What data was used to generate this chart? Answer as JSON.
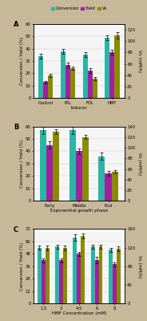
{
  "panel_A": {
    "categories": [
      "Control",
      "FAL",
      "FOL",
      "HMF"
    ],
    "xlabel": "Inducer",
    "conversion": [
      34,
      38,
      35,
      49
    ],
    "yield_": [
      13,
      27,
      22,
      37
    ],
    "vs": [
      40,
      52,
      34,
      110
    ],
    "conversion_err": [
      2,
      2,
      2,
      2
    ],
    "yield_err": [
      1,
      2,
      2,
      2
    ],
    "vs_err": [
      3,
      3,
      3,
      5
    ],
    "ylim_left": [
      0,
      60
    ],
    "ylim_right": [
      0,
      130
    ],
    "yticks_left": [
      0,
      10,
      20,
      30,
      40,
      50,
      60
    ],
    "yticks_right": [
      0,
      20,
      40,
      60,
      80,
      100,
      120
    ]
  },
  "panel_B": {
    "categories": [
      "Early",
      "Middle",
      "End"
    ],
    "xlabel": "Exponential growth phase",
    "conversion": [
      57,
      57,
      36
    ],
    "yield_": [
      45,
      40,
      22
    ],
    "vs": [
      130,
      120,
      55
    ],
    "conversion_err": [
      3,
      3,
      3
    ],
    "yield_err": [
      3,
      2,
      2
    ],
    "vs_err": [
      5,
      4,
      3
    ],
    "ylim_left": [
      0,
      60
    ],
    "ylim_right": [
      0,
      140
    ],
    "yticks_left": [
      0,
      10,
      20,
      30,
      40,
      50,
      60
    ],
    "yticks_right": [
      0,
      20,
      40,
      60,
      80,
      100,
      120,
      140
    ]
  },
  "panel_C": {
    "categories": [
      "1.5",
      "3",
      "4.5",
      "6",
      "8"
    ],
    "xlabel": "HMF Concentration (mM)",
    "conversion": [
      54,
      55,
      64,
      55,
      52
    ],
    "yield_": [
      42,
      42,
      48,
      42,
      38
    ],
    "vs": [
      120,
      120,
      145,
      122,
      118
    ],
    "conversion_err": [
      2,
      2,
      3,
      2,
      2
    ],
    "yield_err": [
      2,
      2,
      2,
      3,
      2
    ],
    "vs_err": [
      5,
      5,
      5,
      5,
      5
    ],
    "ylim_left": [
      0,
      72
    ],
    "ylim_right": [
      0,
      160
    ],
    "yticks_left": [
      0,
      12,
      24,
      36,
      48,
      60,
      72
    ],
    "yticks_right": [
      0,
      40,
      80,
      120,
      160
    ]
  },
  "colors": {
    "conversion": "#2ab5a5",
    "yield_": "#a020a0",
    "vs": "#8b8b00"
  },
  "bar_width": 0.22,
  "ylabel_left": "Conversion / Yield (%)",
  "ylabel_right": "Vs (mM/h)",
  "label_fontsize": 4.0,
  "tick_fontsize": 3.8,
  "legend_fontsize": 3.8,
  "panel_labels": [
    "A",
    "B",
    "C"
  ],
  "outer_bg": "#c8b89a",
  "inner_bg": "#f5f5f5"
}
